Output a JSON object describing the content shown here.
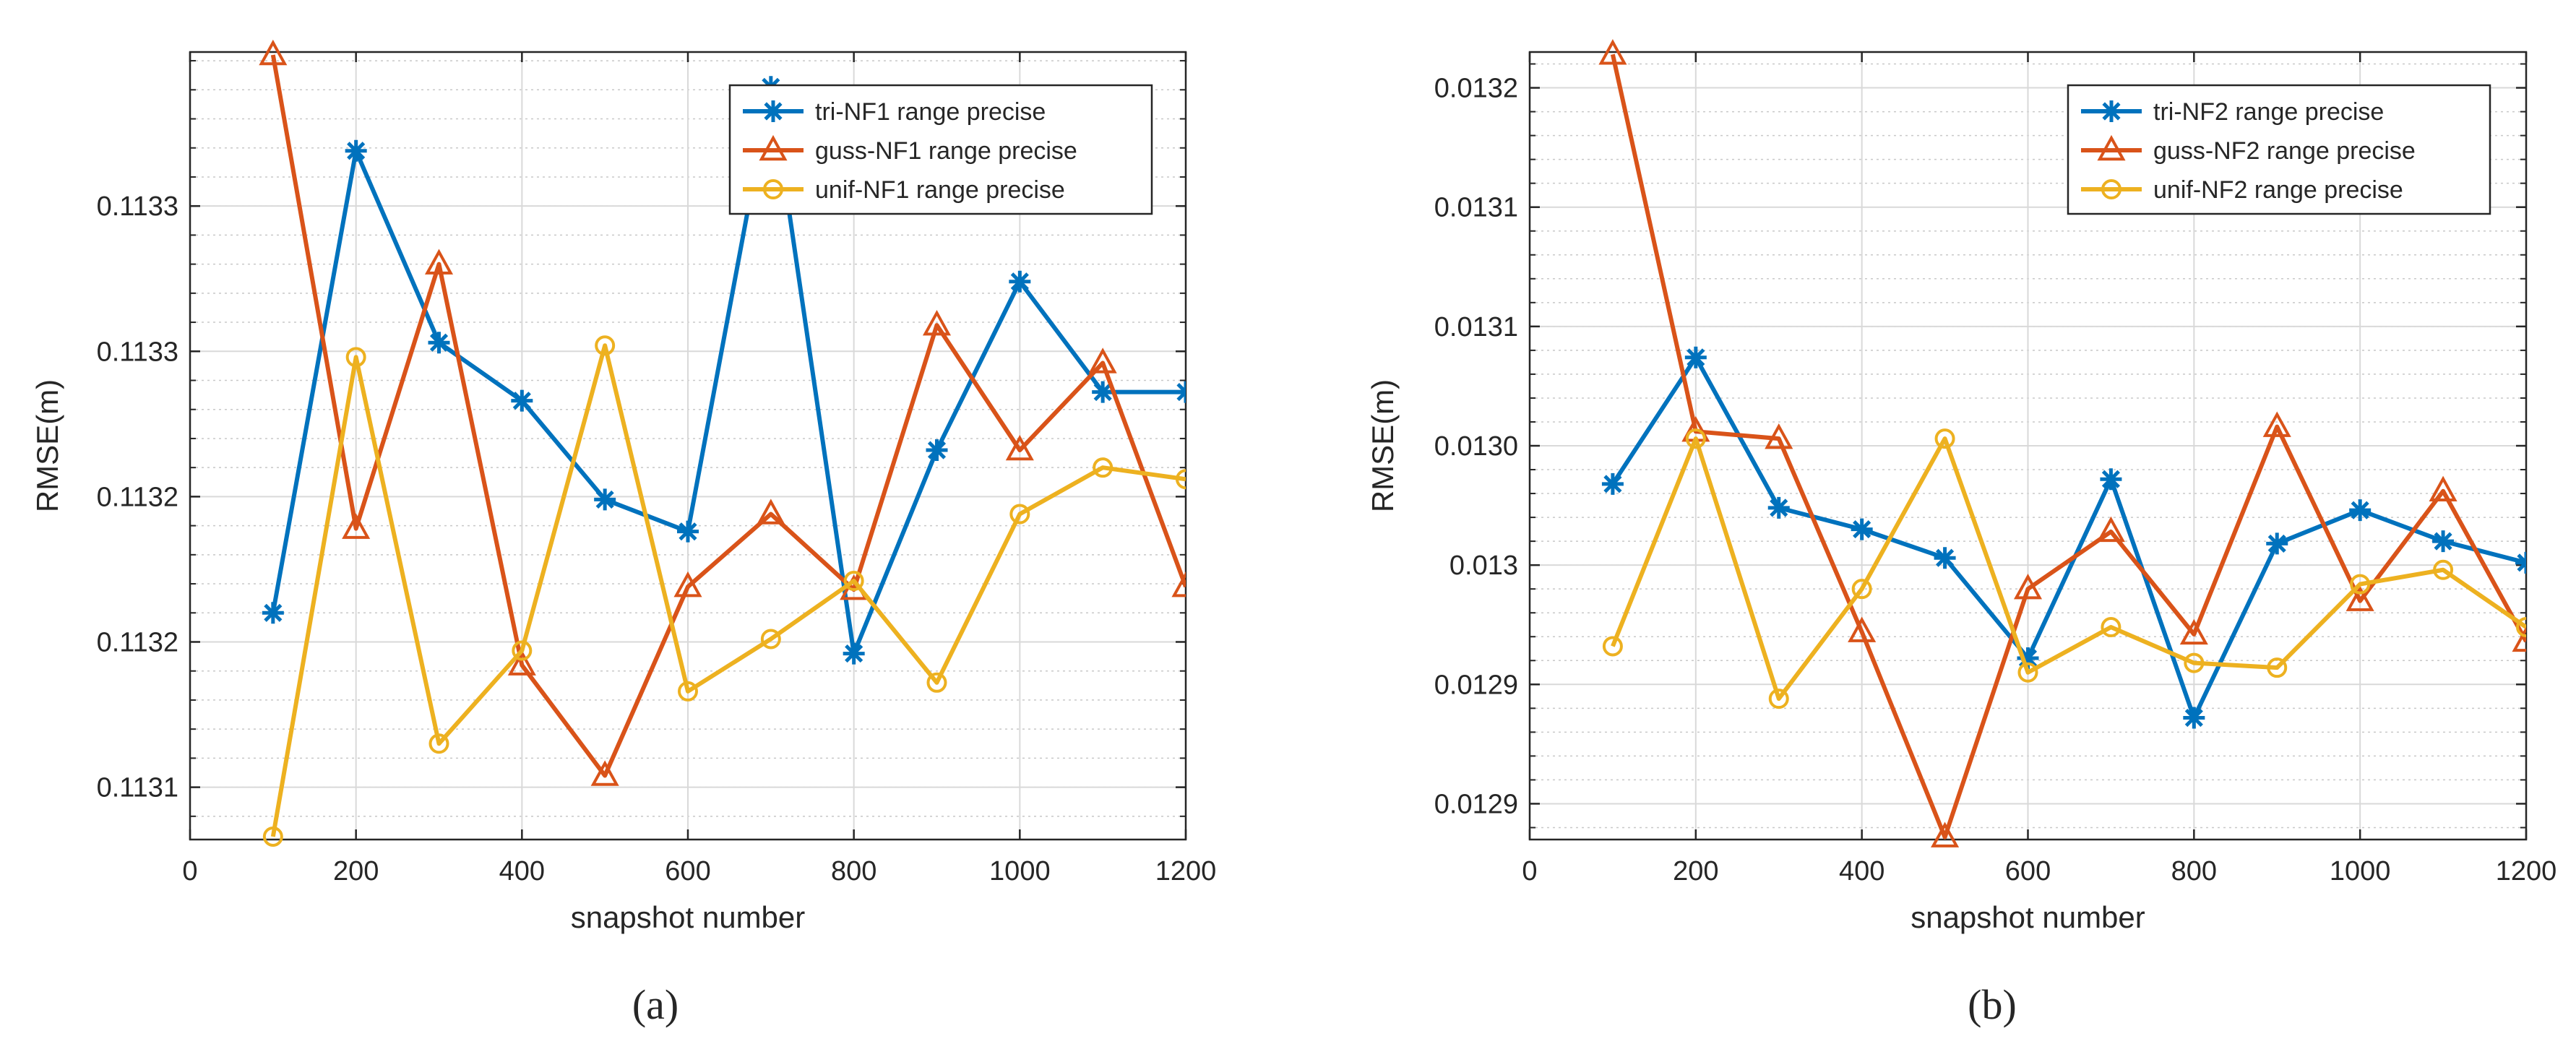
{
  "colors": {
    "tri": "#0072BD",
    "guss": "#D95319",
    "unif": "#EDB120",
    "grid": "#d9d9d9",
    "axis": "#262626"
  },
  "chart_data": [
    {
      "type": "line",
      "caption": "(a)",
      "xlabel": "snapshot number",
      "ylabel": "RMSE(m)",
      "xlim": [
        0,
        1200
      ],
      "ylim": [
        0.113102,
        0.113373
      ],
      "xticks": [
        0,
        200,
        400,
        600,
        800,
        1000,
        1200
      ],
      "xtick_labels": [
        "0",
        "200",
        "400",
        "600",
        "800",
        "1000",
        "1200"
      ],
      "yticks": [
        0.11312,
        0.11317,
        0.11322,
        0.11327,
        0.11332
      ],
      "ytick_labels": [
        "0.1131",
        "0.1132",
        "0.1132",
        "0.1133",
        "0.1133"
      ],
      "minor_ytick_step": 1e-05,
      "grid": true,
      "legend_position": "top-right",
      "x": [
        100,
        200,
        300,
        400,
        500,
        600,
        700,
        800,
        900,
        1000,
        1100,
        1200
      ],
      "series": [
        {
          "name": "tri-NF1 range precise",
          "color_key": "tri",
          "marker": "asterisk",
          "values": [
            0.11318,
            0.113339,
            0.113273,
            0.113253,
            0.113219,
            0.113208,
            0.113361,
            0.113166,
            0.113236,
            0.113294,
            0.113256,
            0.113256
          ]
        },
        {
          "name": "guss-NF1 range precise",
          "color_key": "guss",
          "marker": "triangle",
          "values": [
            0.113372,
            0.113209,
            0.1133,
            0.113162,
            0.113124,
            0.113189,
            0.113214,
            0.113188,
            0.113279,
            0.113236,
            0.113266,
            0.113189
          ]
        },
        {
          "name": "unif-NF1 range precise",
          "color_key": "unif",
          "marker": "circle",
          "values": [
            0.113103,
            0.113268,
            0.113135,
            0.113167,
            0.113272,
            0.113153,
            0.113171,
            0.113191,
            0.113156,
            0.113214,
            0.11323,
            0.113226
          ]
        }
      ]
    },
    {
      "type": "line",
      "caption": "(b)",
      "xlabel": "snapshot number",
      "ylabel": "RMSE(m)",
      "xlim": [
        0,
        1200
      ],
      "ylim": [
        0.012885,
        0.013215
      ],
      "xticks": [
        0,
        200,
        400,
        600,
        800,
        1000,
        1200
      ],
      "xtick_labels": [
        "0",
        "200",
        "400",
        "600",
        "800",
        "1000",
        "1200"
      ],
      "yticks": [
        0.0129,
        0.01295,
        0.013,
        0.01305,
        0.0131,
        0.01315,
        0.0132
      ],
      "ytick_labels": [
        "0.0129",
        "0.0129",
        "0.013",
        "0.0130",
        "0.0131",
        "0.0131",
        "0.0132"
      ],
      "minor_ytick_step": 1e-05,
      "grid": true,
      "legend_position": "top-right",
      "x": [
        100,
        200,
        300,
        400,
        500,
        600,
        700,
        800,
        900,
        1000,
        1100,
        1200
      ],
      "series": [
        {
          "name": "tri-NF2 range precise",
          "color_key": "tri",
          "marker": "asterisk",
          "values": [
            0.013034,
            0.013087,
            0.013024,
            0.013015,
            0.013003,
            0.012961,
            0.013036,
            0.012936,
            0.013009,
            0.013023,
            0.01301,
            0.013001
          ]
        },
        {
          "name": "guss-NF2 range precise",
          "color_key": "guss",
          "marker": "triangle",
          "values": [
            0.013214,
            0.013056,
            0.013053,
            0.012972,
            0.012886,
            0.01299,
            0.013014,
            0.012971,
            0.013058,
            0.012985,
            0.013031,
            0.012968
          ]
        },
        {
          "name": "unif-NF2 range precise",
          "color_key": "unif",
          "marker": "circle",
          "values": [
            0.012966,
            0.013053,
            0.012944,
            0.01299,
            0.013053,
            0.012955,
            0.012974,
            0.012959,
            0.012957,
            0.012992,
            0.012998,
            0.012974
          ]
        }
      ]
    }
  ]
}
